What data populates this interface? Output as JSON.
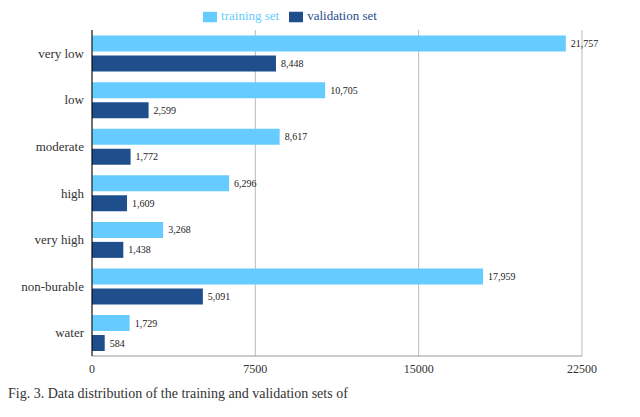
{
  "chart_data": {
    "type": "bar",
    "orientation": "horizontal",
    "caption": "Fig. 3. Data distribution of the training and validation sets of",
    "categories": [
      "very low",
      "low",
      "moderate",
      "high",
      "very high",
      "non-burable",
      "water"
    ],
    "series": [
      {
        "name": "training set",
        "color": "#66ccff",
        "values": [
          21757,
          10705,
          8617,
          6296,
          3268,
          17959,
          1729
        ],
        "value_labels": [
          "21,757",
          "10,705",
          "8,617",
          "6,296",
          "3,268",
          "17,959",
          "1,729"
        ]
      },
      {
        "name": "validation set",
        "color": "#1f4e8c",
        "values": [
          8448,
          2599,
          1772,
          1609,
          1438,
          5091,
          584
        ],
        "value_labels": [
          "8,448",
          "2,599",
          "1,772",
          "1,609",
          "1,438",
          "5,091",
          "584"
        ]
      }
    ],
    "xlim": [
      0,
      22500
    ],
    "xticks": [
      0,
      7500,
      15000,
      22500
    ],
    "grid": true,
    "legend": "top",
    "data_labels": true
  }
}
